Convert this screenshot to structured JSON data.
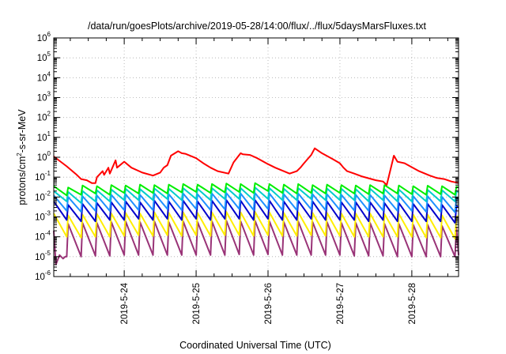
{
  "chart_data": {
    "type": "line",
    "title": "/data/run/goesPlots/archive/2019-05-28/14:00/flux/../flux/5daysMarsFluxes.txt",
    "xlabel": "Coordinated Universal Time (UTC)",
    "ylabel": {
      "prefix": "protons/cm",
      "sup": "2",
      "suffix": "-s-sr-MeV"
    },
    "y_scale": "log",
    "ylim_exponents": [
      -6,
      6
    ],
    "y_ticks": [
      {
        "base": "10",
        "exp": "-6",
        "e": -6
      },
      {
        "base": "10",
        "exp": "-5",
        "e": -5
      },
      {
        "base": "10",
        "exp": "-4",
        "e": -4
      },
      {
        "base": "10",
        "exp": "-3",
        "e": -3
      },
      {
        "base": "10",
        "exp": "-2",
        "e": -2
      },
      {
        "base": "10",
        "exp": "-1",
        "e": -1
      },
      {
        "base": "10",
        "exp": "0",
        "e": 0
      },
      {
        "base": "10",
        "exp": "1",
        "e": 1
      },
      {
        "base": "10",
        "exp": "2",
        "e": 2
      },
      {
        "base": "10",
        "exp": "3",
        "e": 3
      },
      {
        "base": "10",
        "exp": "4",
        "e": 4
      },
      {
        "base": "10",
        "exp": "5",
        "e": 5
      },
      {
        "base": "10",
        "exp": "6",
        "e": 6
      }
    ],
    "xlim_days": [
      -0.98,
      4.65
    ],
    "x_ticks": [
      {
        "label": "2019-5-24",
        "d": 0
      },
      {
        "label": "2019-5-25",
        "d": 1
      },
      {
        "label": "2019-5-26",
        "d": 2
      },
      {
        "label": "2019-5-27",
        "d": 3
      },
      {
        "label": "2019-5-28",
        "d": 4
      }
    ],
    "grid": true,
    "legend": "none",
    "series": [
      {
        "color": "#ff0000",
        "x": [
          -0.98,
          -0.8,
          -0.66,
          -0.6,
          -0.52,
          -0.45,
          -0.4,
          -0.38,
          -0.3,
          -0.28,
          -0.22,
          -0.2,
          -0.12,
          -0.1,
          0.0,
          0.1,
          0.25,
          0.4,
          0.5,
          0.55,
          0.6,
          0.65,
          0.75,
          0.8,
          0.85,
          1.0,
          1.1,
          1.2,
          1.3,
          1.45,
          1.52,
          1.62,
          1.65,
          1.75,
          1.85,
          2.0,
          2.1,
          2.3,
          2.4,
          2.45,
          2.5,
          2.55,
          2.6,
          2.65,
          2.75,
          2.9,
          3.0,
          3.05,
          3.1,
          3.2,
          3.3,
          3.5,
          3.6,
          3.65,
          3.75,
          3.8,
          3.9,
          4.1,
          4.25,
          4.35,
          4.45,
          4.55,
          4.65
        ],
        "y": [
          1.1,
          0.35,
          0.13,
          0.08,
          0.07,
          0.05,
          0.05,
          0.1,
          0.2,
          0.13,
          0.3,
          0.15,
          0.7,
          0.3,
          0.6,
          0.3,
          0.17,
          0.12,
          0.17,
          0.3,
          0.4,
          1.2,
          2.0,
          1.6,
          1.5,
          0.9,
          0.5,
          0.3,
          0.2,
          0.15,
          0.55,
          1.6,
          1.4,
          1.3,
          0.9,
          0.45,
          0.3,
          0.15,
          0.2,
          0.3,
          0.5,
          0.8,
          1.3,
          2.8,
          1.6,
          0.8,
          0.5,
          0.3,
          0.2,
          0.15,
          0.11,
          0.07,
          0.06,
          0.04,
          1.2,
          0.6,
          0.5,
          0.2,
          0.12,
          0.09,
          0.08,
          0.06,
          0.05
        ]
      },
      {
        "color": "#00ee00",
        "x": [
          -0.98,
          -0.8,
          -0.78,
          -0.6,
          -0.58,
          -0.4,
          -0.38,
          -0.2,
          -0.18,
          0.0,
          0.02,
          0.2,
          0.22,
          0.4,
          0.42,
          0.6,
          0.62,
          0.8,
          0.82,
          1.0,
          1.02,
          1.2,
          1.22,
          1.4,
          1.42,
          1.6,
          1.62,
          1.8,
          1.82,
          2.0,
          2.02,
          2.2,
          2.22,
          2.4,
          2.42,
          2.6,
          2.62,
          2.8,
          2.82,
          3.0,
          3.02,
          3.2,
          3.22,
          3.4,
          3.42,
          3.6,
          3.62,
          3.8,
          3.82,
          4.0,
          4.02,
          4.2,
          4.22,
          4.4,
          4.42,
          4.6,
          4.62,
          4.65
        ],
        "y": [
          0.035,
          0.012,
          0.03,
          0.013,
          0.038,
          0.015,
          0.035,
          0.013,
          0.04,
          0.016,
          0.038,
          0.015,
          0.042,
          0.016,
          0.04,
          0.015,
          0.042,
          0.017,
          0.045,
          0.018,
          0.042,
          0.016,
          0.045,
          0.017,
          0.048,
          0.018,
          0.045,
          0.016,
          0.05,
          0.02,
          0.045,
          0.016,
          0.042,
          0.015,
          0.045,
          0.016,
          0.04,
          0.015,
          0.042,
          0.016,
          0.04,
          0.015,
          0.038,
          0.014,
          0.04,
          0.015,
          0.04,
          0.015,
          0.038,
          0.014,
          0.035,
          0.013,
          0.037,
          0.014,
          0.035,
          0.013,
          0.033,
          0.03
        ]
      },
      {
        "color": "#00cccc",
        "x": [
          -0.98,
          -0.8,
          -0.78,
          -0.6,
          -0.58,
          -0.4,
          -0.38,
          -0.2,
          -0.18,
          0.0,
          0.02,
          0.2,
          0.22,
          0.4,
          0.42,
          0.6,
          0.62,
          0.8,
          0.82,
          1.0,
          1.02,
          1.2,
          1.22,
          1.4,
          1.42,
          1.6,
          1.62,
          1.8,
          1.82,
          2.0,
          2.02,
          2.2,
          2.22,
          2.4,
          2.42,
          2.6,
          2.62,
          2.8,
          2.82,
          3.0,
          3.02,
          3.2,
          3.22,
          3.4,
          3.42,
          3.6,
          3.62,
          3.8,
          3.82,
          4.0,
          4.02,
          4.2,
          4.22,
          4.4,
          4.42,
          4.6,
          4.62,
          4.65
        ],
        "y": [
          0.02,
          0.006,
          0.018,
          0.005,
          0.02,
          0.006,
          0.022,
          0.006,
          0.024,
          0.007,
          0.026,
          0.007,
          0.025,
          0.007,
          0.027,
          0.008,
          0.026,
          0.007,
          0.028,
          0.008,
          0.026,
          0.007,
          0.028,
          0.008,
          0.03,
          0.008,
          0.028,
          0.007,
          0.03,
          0.008,
          0.028,
          0.007,
          0.026,
          0.007,
          0.028,
          0.008,
          0.026,
          0.007,
          0.027,
          0.007,
          0.026,
          0.007,
          0.025,
          0.006,
          0.026,
          0.007,
          0.025,
          0.006,
          0.024,
          0.006,
          0.022,
          0.006,
          0.023,
          0.006,
          0.022,
          0.006,
          0.02,
          0.018
        ]
      },
      {
        "color": "#1e90ff",
        "x": [
          -0.98,
          -0.8,
          -0.78,
          -0.6,
          -0.58,
          -0.4,
          -0.38,
          -0.2,
          -0.18,
          0.0,
          0.02,
          0.2,
          0.22,
          0.4,
          0.42,
          0.6,
          0.62,
          0.8,
          0.82,
          1.0,
          1.02,
          1.2,
          1.22,
          1.4,
          1.42,
          1.6,
          1.62,
          1.8,
          1.82,
          2.0,
          2.02,
          2.2,
          2.22,
          2.4,
          2.42,
          2.6,
          2.62,
          2.8,
          2.82,
          3.0,
          3.02,
          3.2,
          3.22,
          3.4,
          3.42,
          3.6,
          3.62,
          3.8,
          3.82,
          4.0,
          4.02,
          4.2,
          4.22,
          4.4,
          4.42,
          4.6,
          4.62,
          4.65
        ],
        "y": [
          0.012,
          0.002,
          0.01,
          0.0018,
          0.011,
          0.002,
          0.012,
          0.002,
          0.013,
          0.0022,
          0.014,
          0.0022,
          0.013,
          0.0022,
          0.015,
          0.0025,
          0.014,
          0.0022,
          0.015,
          0.0025,
          0.014,
          0.0022,
          0.015,
          0.0024,
          0.016,
          0.0025,
          0.015,
          0.0022,
          0.016,
          0.0025,
          0.015,
          0.0022,
          0.014,
          0.0022,
          0.015,
          0.0024,
          0.014,
          0.0022,
          0.014,
          0.0022,
          0.013,
          0.0021,
          0.013,
          0.002,
          0.013,
          0.0021,
          0.012,
          0.002,
          0.012,
          0.002,
          0.011,
          0.0018,
          0.011,
          0.0018,
          0.01,
          0.0017,
          0.009,
          0.008
        ]
      },
      {
        "color": "#0000cc",
        "x": [
          -0.98,
          -0.8,
          -0.78,
          -0.6,
          -0.58,
          -0.4,
          -0.38,
          -0.2,
          -0.18,
          0.0,
          0.02,
          0.2,
          0.22,
          0.4,
          0.42,
          0.6,
          0.62,
          0.8,
          0.82,
          1.0,
          1.02,
          1.2,
          1.22,
          1.4,
          1.42,
          1.6,
          1.62,
          1.8,
          1.82,
          2.0,
          2.02,
          2.2,
          2.22,
          2.4,
          2.42,
          2.6,
          2.62,
          2.8,
          2.82,
          3.0,
          3.02,
          3.2,
          3.22,
          3.4,
          3.42,
          3.6,
          3.62,
          3.8,
          3.82,
          4.0,
          4.02,
          4.2,
          4.22,
          4.4,
          4.42,
          4.6,
          4.62,
          4.65
        ],
        "y": [
          0.006,
          0.0007,
          0.004,
          0.0006,
          0.0045,
          0.0006,
          0.005,
          0.0007,
          0.0055,
          0.0007,
          0.006,
          0.0008,
          0.0055,
          0.0007,
          0.0065,
          0.0008,
          0.006,
          0.0007,
          0.0065,
          0.0008,
          0.006,
          0.0007,
          0.0065,
          0.0008,
          0.007,
          0.0008,
          0.0065,
          0.0007,
          0.007,
          0.0008,
          0.0065,
          0.0007,
          0.006,
          0.0007,
          0.0065,
          0.0008,
          0.006,
          0.0007,
          0.006,
          0.0007,
          0.0055,
          0.0007,
          0.0055,
          0.0006,
          0.0055,
          0.0007,
          0.005,
          0.0006,
          0.005,
          0.0006,
          0.0045,
          0.0006,
          0.0045,
          0.0006,
          0.004,
          0.0005,
          0.0035,
          0.003
        ]
      },
      {
        "color": "#ffee00",
        "x": [
          -0.98,
          -0.8,
          -0.78,
          -0.6,
          -0.58,
          -0.4,
          -0.38,
          -0.2,
          -0.18,
          0.0,
          0.02,
          0.2,
          0.22,
          0.4,
          0.42,
          0.6,
          0.62,
          0.8,
          0.82,
          1.0,
          1.02,
          1.2,
          1.22,
          1.4,
          1.42,
          1.6,
          1.62,
          1.8,
          1.82,
          2.0,
          2.02,
          2.2,
          2.22,
          2.4,
          2.42,
          2.6,
          2.62,
          2.8,
          2.82,
          3.0,
          3.02,
          3.2,
          3.22,
          3.4,
          3.42,
          3.6,
          3.62,
          3.8,
          3.82,
          4.0,
          4.02,
          4.2,
          4.22,
          4.4,
          4.42,
          4.6,
          4.62,
          4.65
        ],
        "y": [
          0.0015,
          0.0001,
          0.0012,
          9e-05,
          0.0013,
          0.0001,
          0.0014,
          0.0001,
          0.0015,
          0.00011,
          0.0016,
          0.00012,
          0.0015,
          0.00011,
          0.0017,
          0.00012,
          0.0016,
          0.00011,
          0.0017,
          0.00012,
          0.0016,
          0.00011,
          0.0017,
          0.00012,
          0.0018,
          0.00012,
          0.0017,
          0.00011,
          0.0018,
          0.00012,
          0.0017,
          0.00011,
          0.0016,
          0.00011,
          0.0017,
          0.00012,
          0.0016,
          0.00011,
          0.0016,
          0.00011,
          0.0015,
          0.0001,
          0.0015,
          0.0001,
          0.0015,
          0.0001,
          0.0014,
          0.0001,
          0.0014,
          0.0001,
          0.0013,
          9e-05,
          0.0013,
          9e-05,
          0.0012,
          8e-05,
          0.0011,
          0.001
        ]
      },
      {
        "color": "#993377",
        "x": [
          -0.98,
          -0.95,
          -0.9,
          -0.85,
          -0.82,
          -0.8,
          -0.78,
          -0.6,
          -0.58,
          -0.4,
          -0.38,
          -0.2,
          -0.18,
          0.0,
          0.02,
          0.2,
          0.22,
          0.4,
          0.42,
          0.6,
          0.62,
          0.8,
          0.82,
          1.0,
          1.02,
          1.2,
          1.22,
          1.4,
          1.42,
          1.6,
          1.62,
          1.8,
          1.82,
          2.0,
          2.02,
          2.2,
          2.22,
          2.4,
          2.42,
          2.6,
          2.62,
          2.8,
          2.82,
          3.0,
          3.02,
          3.2,
          3.22,
          3.4,
          3.42,
          3.6,
          3.62,
          3.8,
          3.82,
          4.0,
          4.02,
          4.2,
          4.22,
          4.4,
          4.42,
          4.6,
          4.62,
          4.65
        ],
        "y": [
          0.0002,
          4e-06,
          1.2e-05,
          8e-06,
          1e-05,
          1e-05,
          0.00045,
          1e-05,
          0.0005,
          1.1e-05,
          0.0005,
          1.1e-05,
          0.00055,
          1.2e-05,
          0.0006,
          1.2e-05,
          0.00055,
          1.2e-05,
          0.0006,
          1.2e-05,
          0.00055,
          1.2e-05,
          0.0006,
          1.2e-05,
          0.00055,
          1.2e-05,
          0.0006,
          1.2e-05,
          0.00065,
          1.3e-05,
          0.0006,
          1.2e-05,
          0.00065,
          1.3e-05,
          0.0006,
          1.2e-05,
          0.00055,
          1.2e-05,
          0.0006,
          1.2e-05,
          0.00055,
          1.2e-05,
          0.00055,
          1.2e-05,
          0.0005,
          1.1e-05,
          0.0005,
          1.1e-05,
          0.0005,
          1.1e-05,
          0.00045,
          1e-05,
          0.00045,
          1e-05,
          0.0004,
          1e-05,
          0.0004,
          1e-05,
          0.00035,
          1e-05,
          0.0003,
          1.2e-05
        ]
      }
    ]
  }
}
